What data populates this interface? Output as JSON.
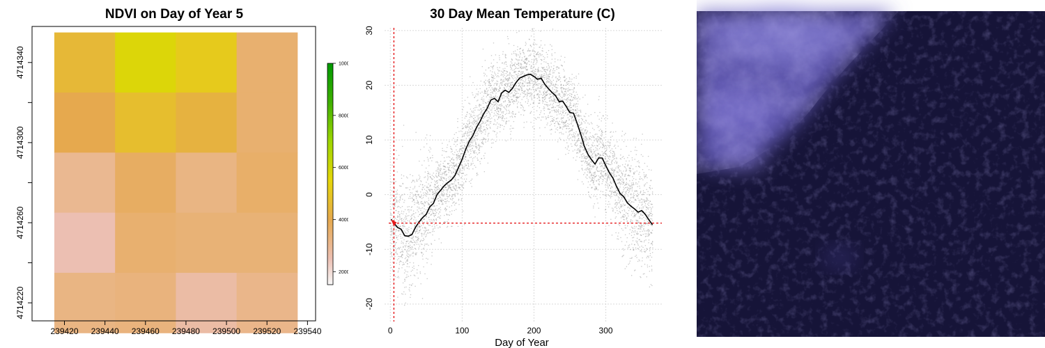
{
  "chart_data": [
    {
      "type": "heatmap",
      "title": "NDVI on Day of Year 5",
      "xlabel": "",
      "ylabel": "",
      "x_ticks": [
        239420,
        239440,
        239460,
        239480,
        239500,
        239520,
        239540
      ],
      "y_ticks": [
        4714220,
        4714260,
        4714300,
        4714340
      ],
      "xlim": [
        239404,
        239544
      ],
      "ylim": [
        4714211,
        4714358
      ],
      "cell_x_edges": [
        239415,
        239445,
        239475,
        239505,
        239535
      ],
      "cell_y_edges": [
        4714355,
        4714325,
        4714295,
        4714265,
        4714235,
        4714205
      ],
      "values": [
        [
          4500,
          5700,
          5100,
          3500
        ],
        [
          4000,
          4700,
          4300,
          3500
        ],
        [
          3000,
          3700,
          3200,
          3600
        ],
        [
          2500,
          3500,
          3400,
          3400
        ],
        [
          3200,
          3300,
          2700,
          3100
        ]
      ],
      "colorbar": {
        "min": 1500,
        "max": 10000,
        "ticks": [
          2000,
          4000,
          6000,
          8000,
          10000
        ],
        "stops": [
          {
            "value": 1500,
            "color": "#f8f8f8"
          },
          {
            "value": 2500,
            "color": "#ecbfb2"
          },
          {
            "value": 4000,
            "color": "#e6a94e"
          },
          {
            "value": 5500,
            "color": "#e6d60a"
          },
          {
            "value": 7000,
            "color": "#9ed600"
          },
          {
            "value": 8500,
            "color": "#3fb000"
          },
          {
            "value": 10000,
            "color": "#009900"
          }
        ]
      }
    },
    {
      "type": "scatter",
      "title": "30 Day Mean Temperature (C)",
      "xlabel": "Day of Year",
      "ylabel": "",
      "xlim": [
        -8,
        378
      ],
      "ylim": [
        -23.2,
        30.5
      ],
      "x_ticks": [
        0,
        100,
        200,
        300
      ],
      "y_ticks": [
        -20,
        -10,
        0,
        10,
        20,
        30
      ],
      "grid": true,
      "points": {
        "description": "daily temperature observations, gray",
        "mean_x": [
          1,
          5,
          10,
          15,
          20,
          25,
          30,
          35,
          40,
          45,
          50,
          55,
          60,
          65,
          70,
          75,
          80,
          85,
          90,
          95,
          100,
          105,
          110,
          115,
          120,
          125,
          130,
          135,
          140,
          145,
          150,
          155,
          160,
          165,
          170,
          175,
          180,
          185,
          190,
          195,
          200,
          205,
          210,
          215,
          220,
          225,
          230,
          235,
          240,
          245,
          250,
          255,
          260,
          265,
          270,
          275,
          280,
          285,
          290,
          295,
          300,
          305,
          310,
          315,
          320,
          325,
          330,
          335,
          340,
          345,
          350,
          355,
          360,
          365
        ],
        "mean_y": [
          -5,
          -5.5,
          -6,
          -6.5,
          -7.5,
          -7.5,
          -7,
          -6,
          -5,
          -4,
          -3.5,
          -2,
          -1.5,
          0,
          1,
          1.5,
          2,
          2.5,
          3.5,
          5,
          6.5,
          8.5,
          10,
          11,
          12.5,
          13.5,
          15,
          16,
          17.5,
          17.8,
          17,
          18.8,
          19.2,
          18.8,
          19.5,
          20.5,
          21.2,
          21.5,
          21.8,
          21.9,
          21.5,
          21,
          21.2,
          20.2,
          19.5,
          18.8,
          18.2,
          17,
          17.2,
          16.2,
          15,
          15,
          13.2,
          11,
          9,
          7.5,
          6.5,
          5.5,
          6.8,
          6.8,
          5.5,
          4,
          3,
          1.5,
          0.5,
          -0.5,
          -1.5,
          -2,
          -2.5,
          -3,
          -2.8,
          -3.5,
          -4.5,
          -5.5
        ],
        "spread_sd": 3.5
      },
      "series": [
        {
          "name": "",
          "color": "#000000",
          "x": [
            1,
            5,
            10,
            15,
            20,
            25,
            30,
            35,
            40,
            45,
            50,
            55,
            60,
            65,
            70,
            75,
            80,
            85,
            90,
            95,
            100,
            105,
            110,
            115,
            120,
            125,
            130,
            135,
            140,
            145,
            150,
            155,
            160,
            165,
            170,
            175,
            180,
            185,
            190,
            195,
            200,
            205,
            210,
            215,
            220,
            225,
            230,
            235,
            240,
            245,
            250,
            255,
            260,
            265,
            270,
            275,
            280,
            285,
            290,
            295,
            300,
            305,
            310,
            315,
            320,
            325,
            330,
            335,
            340,
            345,
            350,
            355,
            360,
            365
          ],
          "y": [
            -4.5,
            -5.2,
            -6,
            -6.3,
            -7.5,
            -7.6,
            -7.3,
            -6,
            -5,
            -4.2,
            -3.6,
            -2.2,
            -1.6,
            0,
            0.8,
            1.6,
            2.2,
            2.7,
            3.5,
            5,
            6.5,
            8.3,
            9.8,
            10.8,
            12.3,
            13.4,
            14.8,
            15.8,
            17.3,
            17.6,
            17,
            18.6,
            19.1,
            18.7,
            19.4,
            20.5,
            21.3,
            21.6,
            21.9,
            22,
            21.6,
            21.1,
            21.3,
            20.2,
            19.4,
            18.7,
            18.1,
            17,
            17.1,
            16.1,
            15,
            14.9,
            13.1,
            11.1,
            8.9,
            7.4,
            6.4,
            5.6,
            6.7,
            6.7,
            5.3,
            4,
            3,
            1.5,
            0.2,
            -0.4,
            -1.5,
            -2.1,
            -2.6,
            -3.2,
            -2.9,
            -3.6,
            -4.6,
            -5.5
          ]
        }
      ],
      "reference_lines": {
        "vertical_x": 5,
        "horizontal_y": -5.2,
        "color": "#e41a1c",
        "marker": {
          "x": 5,
          "y": -5.2
        }
      }
    }
  ],
  "satellite_image": {
    "description": "false color satellite imagery, dark indigo with lighter cloud in upper-left",
    "base_color": "#161438",
    "cloud_color": "#7a6fd0"
  }
}
